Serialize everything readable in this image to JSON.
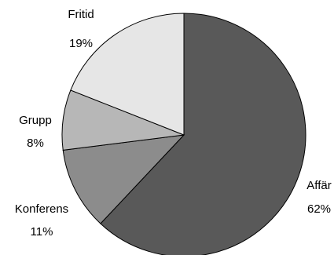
{
  "chart_data": {
    "type": "pie",
    "title": "",
    "slices": [
      {
        "label": "Affär",
        "value": 62,
        "value_label": "62%",
        "color": "#595959"
      },
      {
        "label": "Konferens",
        "value": 11,
        "value_label": "11%",
        "color": "#8c8c8c"
      },
      {
        "label": "Grupp",
        "value": 8,
        "value_label": "8%",
        "color": "#b7b7b7"
      },
      {
        "label": "Fritid",
        "value": 19,
        "value_label": "19%",
        "color": "#e6e6e6"
      }
    ],
    "start_angle_deg": 0,
    "direction": "clockwise",
    "slice_border_color": "#000000",
    "legend": "none"
  }
}
